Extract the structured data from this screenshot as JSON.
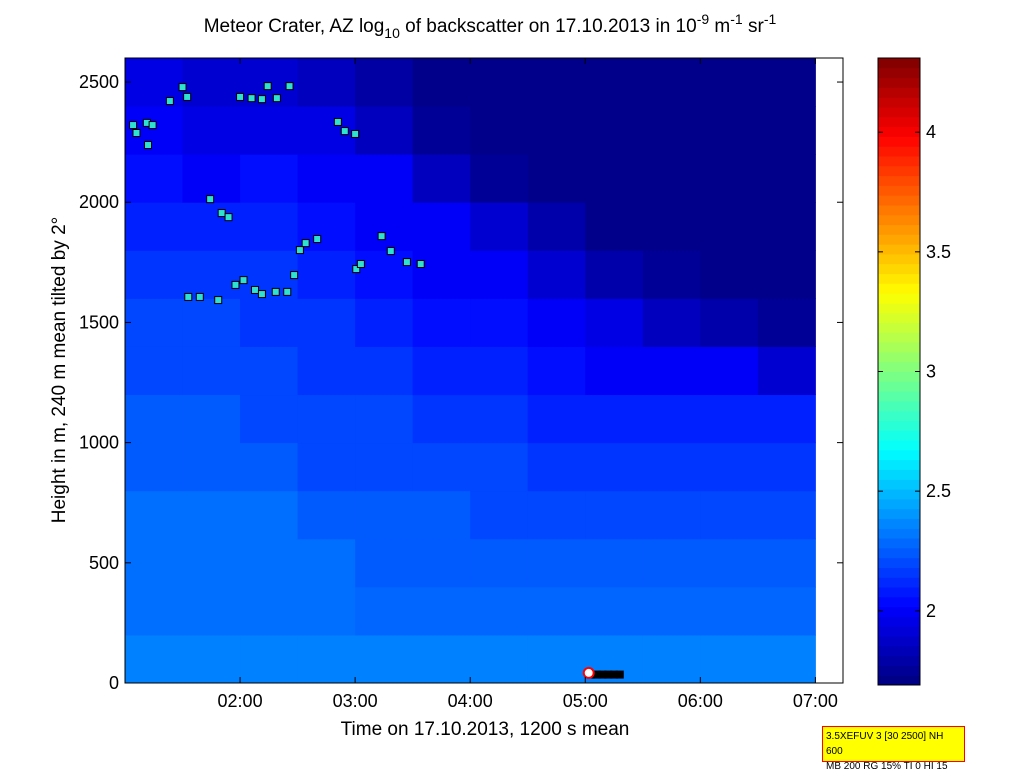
{
  "chart_data": {
    "type": "heatmap",
    "title_parts": [
      "Meteor Crater, AZ log",
      "10",
      " of backscatter on 17.10.2013 in 10",
      "-9",
      " m",
      "-1",
      " sr",
      "-1"
    ],
    "title_shifts": [
      "normal",
      "sub",
      "normal",
      "super",
      "normal",
      "super",
      "normal",
      "super"
    ],
    "x_label": "Time on 17.10.2013, 1200 s mean",
    "y_label": "Height in m, 240 m mean tilted by 2°",
    "xlim": [
      1,
      7.24
    ],
    "xticks": [
      {
        "value": 2,
        "label": "02:00"
      },
      {
        "value": 3,
        "label": "03:00"
      },
      {
        "value": 4,
        "label": "04:00"
      },
      {
        "value": 5,
        "label": "05:00"
      },
      {
        "value": 6,
        "label": "06:00"
      },
      {
        "value": 7,
        "label": "07:00"
      }
    ],
    "ylim": [
      0,
      2600
    ],
    "yticks": [
      0,
      500,
      1000,
      1500,
      2000,
      2500
    ],
    "colormap": "jet",
    "clim": [
      1.69,
      4.31
    ],
    "cticks": [
      2,
      2.5,
      3,
      3.5,
      4
    ],
    "cell_width": 0.5,
    "cell_height": 200,
    "x": [
      1.25,
      1.75,
      2.25,
      2.75,
      3.25,
      3.75,
      4.25,
      4.75,
      5.25,
      5.75,
      6.25,
      6.75
    ],
    "y": [
      100,
      300,
      500,
      700,
      900,
      1100,
      1300,
      1500,
      1700,
      1900,
      2100,
      2300,
      2500
    ],
    "z": [
      [
        2.35,
        2.35,
        2.35,
        2.35,
        2.35,
        2.35,
        2.35,
        2.35,
        2.35,
        2.35,
        2.35,
        2.35
      ],
      [
        2.3,
        2.3,
        2.3,
        2.3,
        2.28,
        2.28,
        2.28,
        2.28,
        2.28,
        2.28,
        2.28,
        2.28
      ],
      [
        2.3,
        2.3,
        2.3,
        2.3,
        2.25,
        2.25,
        2.25,
        2.25,
        2.25,
        2.25,
        2.25,
        2.25
      ],
      [
        2.3,
        2.3,
        2.3,
        2.25,
        2.25,
        2.25,
        2.2,
        2.2,
        2.2,
        2.2,
        2.2,
        2.2
      ],
      [
        2.25,
        2.25,
        2.25,
        2.2,
        2.2,
        2.2,
        2.2,
        2.15,
        2.15,
        2.15,
        2.15,
        2.15
      ],
      [
        2.25,
        2.25,
        2.2,
        2.2,
        2.2,
        2.15,
        2.15,
        2.1,
        2.1,
        2.1,
        2.1,
        2.1
      ],
      [
        2.2,
        2.2,
        2.2,
        2.15,
        2.15,
        2.1,
        2.1,
        2.05,
        2.0,
        2.0,
        2.0,
        1.9
      ],
      [
        2.2,
        2.2,
        2.15,
        2.15,
        2.1,
        2.05,
        2.05,
        2.0,
        1.95,
        1.85,
        1.8,
        1.75
      ],
      [
        2.15,
        2.15,
        2.15,
        2.1,
        2.05,
        2.0,
        2.0,
        1.9,
        1.8,
        1.75,
        1.72,
        1.72
      ],
      [
        2.1,
        2.1,
        2.1,
        2.05,
        2.0,
        2.0,
        1.9,
        1.8,
        1.72,
        1.72,
        1.72,
        1.72
      ],
      [
        2.05,
        2.0,
        2.05,
        2.0,
        2.0,
        1.85,
        1.75,
        1.72,
        1.72,
        1.72,
        1.72,
        1.72
      ],
      [
        2.0,
        1.95,
        1.95,
        1.95,
        1.85,
        1.75,
        1.72,
        1.72,
        1.72,
        1.72,
        1.72,
        1.72
      ],
      [
        1.95,
        1.9,
        1.9,
        1.85,
        1.78,
        1.72,
        1.72,
        1.72,
        1.72,
        1.72,
        1.72,
        1.72
      ]
    ],
    "overlays": [
      {
        "color": "#30e0d0",
        "marker": "square",
        "x": [
          1.07,
          1.1,
          1.19,
          1.24,
          1.2,
          1.39,
          1.5,
          1.54,
          1.55,
          1.65,
          1.74,
          1.81,
          1.84,
          1.9,
          1.96,
          2.0,
          2.03,
          2.1,
          2.19,
          2.13,
          2.19,
          2.24,
          2.32,
          2.31,
          2.41,
          2.43,
          2.47,
          2.52,
          2.57,
          2.67,
          2.85,
          2.91,
          3.0,
          3.01,
          3.05,
          3.23,
          3.31,
          3.45,
          3.57
        ],
        "y": [
          2321,
          2288,
          2330,
          2321,
          2238,
          2421,
          2479,
          2438,
          1606,
          1606,
          2013,
          1593,
          1955,
          1938,
          1656,
          2438,
          1676,
          2433,
          2429,
          1635,
          1618,
          2483,
          2433,
          1627,
          1627,
          2483,
          1697,
          1801,
          1830,
          1847,
          2334,
          2296,
          2284,
          1722,
          1743,
          1859,
          1797,
          1751,
          1743
        ]
      },
      {
        "color": "#000000",
        "marker": "square",
        "x": [
          5.05,
          5.1,
          5.15,
          5.2,
          5.25,
          5.3
        ],
        "y": [
          35,
          35,
          35,
          35,
          35,
          35
        ]
      },
      {
        "color": "#ff0000",
        "marker": "circle",
        "x": [
          5.03
        ],
        "y": [
          42
        ]
      }
    ],
    "info_box": [
      "3.5XEFUV 3 [30 2500] NH 600",
      "MB 200 RG 15% TI 0 HI 15"
    ]
  }
}
